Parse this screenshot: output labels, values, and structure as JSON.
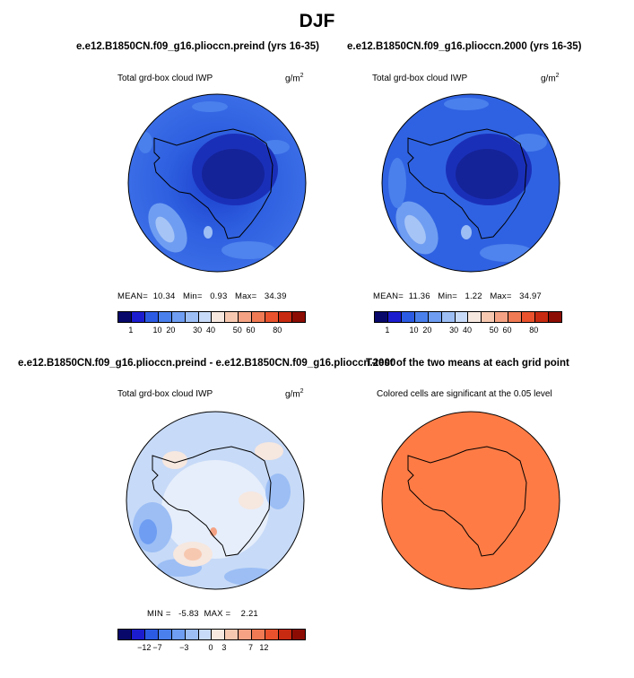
{
  "figure": {
    "title": "DJF",
    "units": "g/m",
    "units_exp": "2"
  },
  "chart_data": [
    {
      "type": "heatmap",
      "title": "e.e12.B1850CN.f09_g16.plioccn.preind (yrs 16-35)",
      "subtitle": "Total grd-box cloud IWP",
      "stats": {
        "mean_label": "MEAN=",
        "mean": "10.34",
        "min_label": "Min=",
        "min": "0.93",
        "max_label": "Max=",
        "max": "34.39"
      },
      "colorbar": {
        "colors": [
          "#08086b",
          "#1c1ccf",
          "#2c5be3",
          "#4a80ec",
          "#6e9df2",
          "#9cbef5",
          "#c7daf7",
          "#f6e7df",
          "#f7c8b0",
          "#f4a283",
          "#ef7a53",
          "#e9522c",
          "#c72a10",
          "#8c0c04"
        ],
        "tick_labels": [
          "1",
          "10",
          "20",
          "30",
          "40",
          "50",
          "60",
          "80"
        ]
      }
    },
    {
      "type": "heatmap",
      "title": "e.e12.B1850CN.f09_g16.plioccn.2000 (yrs 16-35)",
      "subtitle": "Total grd-box cloud IWP",
      "stats": {
        "mean_label": "MEAN=",
        "mean": "11.36",
        "min_label": "Min=",
        "min": "1.22",
        "max_label": "Max=",
        "max": "34.97"
      },
      "colorbar": {
        "colors": [
          "#08086b",
          "#1c1ccf",
          "#2c5be3",
          "#4a80ec",
          "#6e9df2",
          "#9cbef5",
          "#c7daf7",
          "#f6e7df",
          "#f7c8b0",
          "#f4a283",
          "#ef7a53",
          "#e9522c",
          "#c72a10",
          "#8c0c04"
        ],
        "tick_labels": [
          "1",
          "10",
          "20",
          "30",
          "40",
          "50",
          "60",
          "80"
        ]
      }
    },
    {
      "type": "heatmap",
      "title": "e.e12.B1850CN.f09_g16.plioccn.preind - e.e12.B1850CN.f09_g16.plioccn.2000",
      "subtitle": "Total grd-box cloud IWP",
      "stats": {
        "min_label": "MIN =",
        "min": "-5.83",
        "max_label": "MAX =",
        "max": "2.21"
      },
      "colorbar": {
        "colors": [
          "#08086b",
          "#1c1ccf",
          "#2c5be3",
          "#4a80ec",
          "#6e9df2",
          "#9cbef5",
          "#c7daf7",
          "#f6e7df",
          "#f7c8b0",
          "#f4a283",
          "#ef7a53",
          "#e9522c",
          "#c72a10",
          "#8c0c04"
        ],
        "tick_labels": [
          "−12",
          "−7",
          "−3",
          "0",
          "3",
          "7",
          "12"
        ]
      }
    },
    {
      "type": "heatmap",
      "title": "T-test of the two means at each grid point",
      "subtitle": "Colored cells are significant at the 0.05 level",
      "fill_color": "#ff7b45"
    }
  ]
}
